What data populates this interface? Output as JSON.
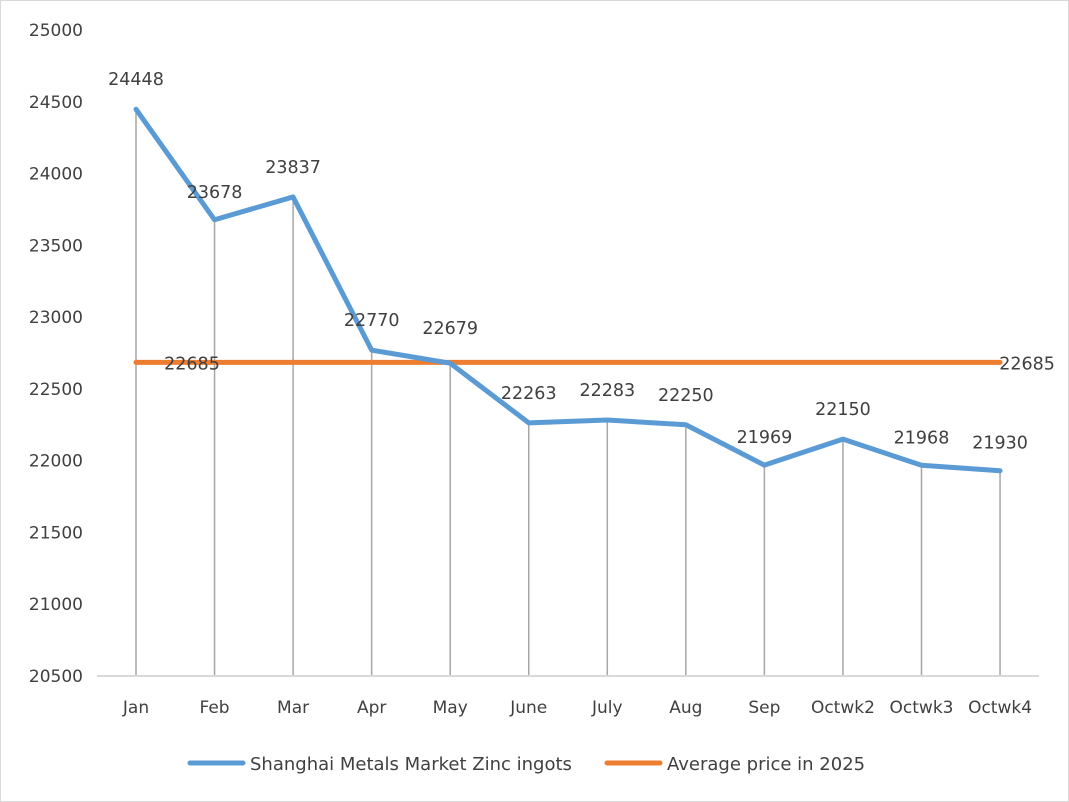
{
  "chart_data": {
    "type": "line",
    "title": "",
    "xlabel": "",
    "ylabel": "",
    "categories": [
      "Jan",
      "Feb",
      "Mar",
      "Apr",
      "May",
      "June",
      "July",
      "Aug",
      "Sep",
      "Octwk2",
      "Octwk3",
      "Octwk4"
    ],
    "series": [
      {
        "name": "Shanghai Metals Market Zinc ingots",
        "color": "#5b9bd5",
        "values": [
          24448,
          23678,
          23837,
          22770,
          22679,
          22263,
          22283,
          22250,
          21969,
          22150,
          21968,
          21930
        ]
      },
      {
        "name": "Average price in 2025",
        "color": "#ed7d31",
        "values": [
          22685,
          22685,
          22685,
          22685,
          22685,
          22685,
          22685,
          22685,
          22685,
          22685,
          22685,
          22685
        ],
        "labeled_points": [
          0,
          11
        ]
      }
    ],
    "ylim": [
      20500,
      25000
    ],
    "yticks": [
      20500,
      21000,
      21500,
      22000,
      22500,
      23000,
      23500,
      24000,
      24500,
      25000
    ],
    "grid": "vertical drop lines at each category",
    "legend_position": "bottom"
  }
}
